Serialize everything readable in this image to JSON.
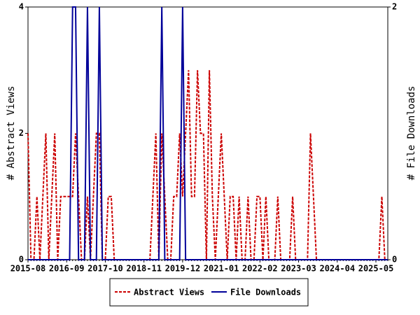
{
  "chart_data": {
    "type": "line",
    "categories": [
      "2015-08",
      null,
      null,
      null,
      null,
      null,
      null,
      null,
      null,
      null,
      null,
      null,
      null,
      "2016-09",
      null,
      null,
      null,
      null,
      null,
      null,
      null,
      null,
      null,
      null,
      null,
      null,
      "2017-10",
      null,
      null,
      null,
      null,
      null,
      null,
      null,
      null,
      null,
      null,
      null,
      null,
      "2018-11",
      null,
      null,
      null,
      null,
      null,
      null,
      null,
      null,
      null,
      null,
      null,
      null,
      "2019-12",
      null,
      null,
      null,
      null,
      null,
      null,
      null,
      null,
      null,
      null,
      null,
      null,
      "2021-01",
      null,
      null,
      null,
      null,
      null,
      null,
      null,
      null,
      null,
      null,
      null,
      null,
      "2022-02",
      null,
      null,
      null,
      null,
      null,
      null,
      null,
      null,
      null,
      null,
      null,
      null,
      "2023-03",
      null,
      null,
      null,
      null,
      null,
      null,
      null,
      null,
      null,
      null,
      null,
      null,
      "2024-04",
      null,
      null,
      null,
      null,
      null,
      null,
      null,
      null,
      null,
      null,
      null,
      null,
      "2025-05",
      null,
      null,
      null,
      null
    ],
    "series": [
      {
        "name": "Abstract Views",
        "color": "#cc0000",
        "dash": true,
        "values": [
          2,
          0,
          0,
          1,
          0,
          1,
          2,
          0,
          1,
          2,
          0,
          1,
          1,
          1,
          1,
          1,
          2,
          1,
          0,
          0,
          1,
          0,
          1,
          2,
          2,
          0,
          0,
          1,
          1,
          0,
          0,
          0,
          0,
          0,
          0,
          0,
          0,
          0,
          0,
          0,
          0,
          0,
          1,
          2,
          0,
          2,
          1,
          0,
          0,
          1,
          1,
          2,
          1,
          2,
          3,
          1,
          1,
          3,
          2,
          2,
          0,
          3,
          1,
          0,
          1,
          2,
          1,
          0,
          1,
          1,
          0,
          1,
          0,
          0,
          1,
          0,
          0,
          1,
          1,
          0,
          1,
          0,
          0,
          0,
          1,
          0,
          0,
          0,
          0,
          1,
          0,
          0,
          0,
          0,
          0,
          2,
          1,
          0,
          0,
          0,
          0,
          0,
          0,
          0,
          0,
          0,
          0,
          0,
          0,
          0,
          0,
          0,
          0,
          0,
          0,
          0,
          0,
          0,
          0,
          1,
          0,
          0
        ]
      },
      {
        "name": "File Downloads",
        "color": "#000099",
        "axis": "y2",
        "values": [
          0,
          0,
          0,
          0,
          0,
          0,
          0,
          0,
          0,
          0,
          0,
          0,
          0,
          0,
          0,
          2,
          2,
          0,
          0,
          0,
          2,
          0,
          0,
          0,
          2,
          0,
          0,
          0,
          0,
          0,
          0,
          0,
          0,
          0,
          0,
          0,
          0,
          0,
          0,
          0,
          0,
          0,
          0,
          0,
          0,
          2,
          0,
          0,
          0,
          0,
          0,
          0,
          2,
          0,
          0,
          0,
          0,
          0,
          0,
          0,
          0,
          0,
          0,
          0,
          0,
          0,
          0,
          0,
          0,
          0,
          0,
          0,
          0,
          0,
          0,
          0,
          0,
          0,
          0,
          0,
          0,
          0,
          0,
          0,
          0,
          0,
          0,
          0,
          0,
          0,
          0,
          0,
          0,
          0,
          0,
          0,
          0,
          0,
          0,
          0,
          0,
          0,
          0,
          0,
          0,
          0,
          0,
          0,
          0,
          0,
          0,
          0,
          0,
          0,
          0,
          0,
          0,
          0,
          0,
          0,
          0,
          0
        ]
      }
    ],
    "ylabel": "# Abstract Views",
    "y2label": "# File Downloads",
    "ylim": [
      0,
      4
    ],
    "yticks": [
      0,
      2,
      4
    ],
    "y2lim": [
      0,
      2
    ],
    "y2ticks": [
      0,
      2
    ],
    "grid": false,
    "legend": "bottom"
  }
}
